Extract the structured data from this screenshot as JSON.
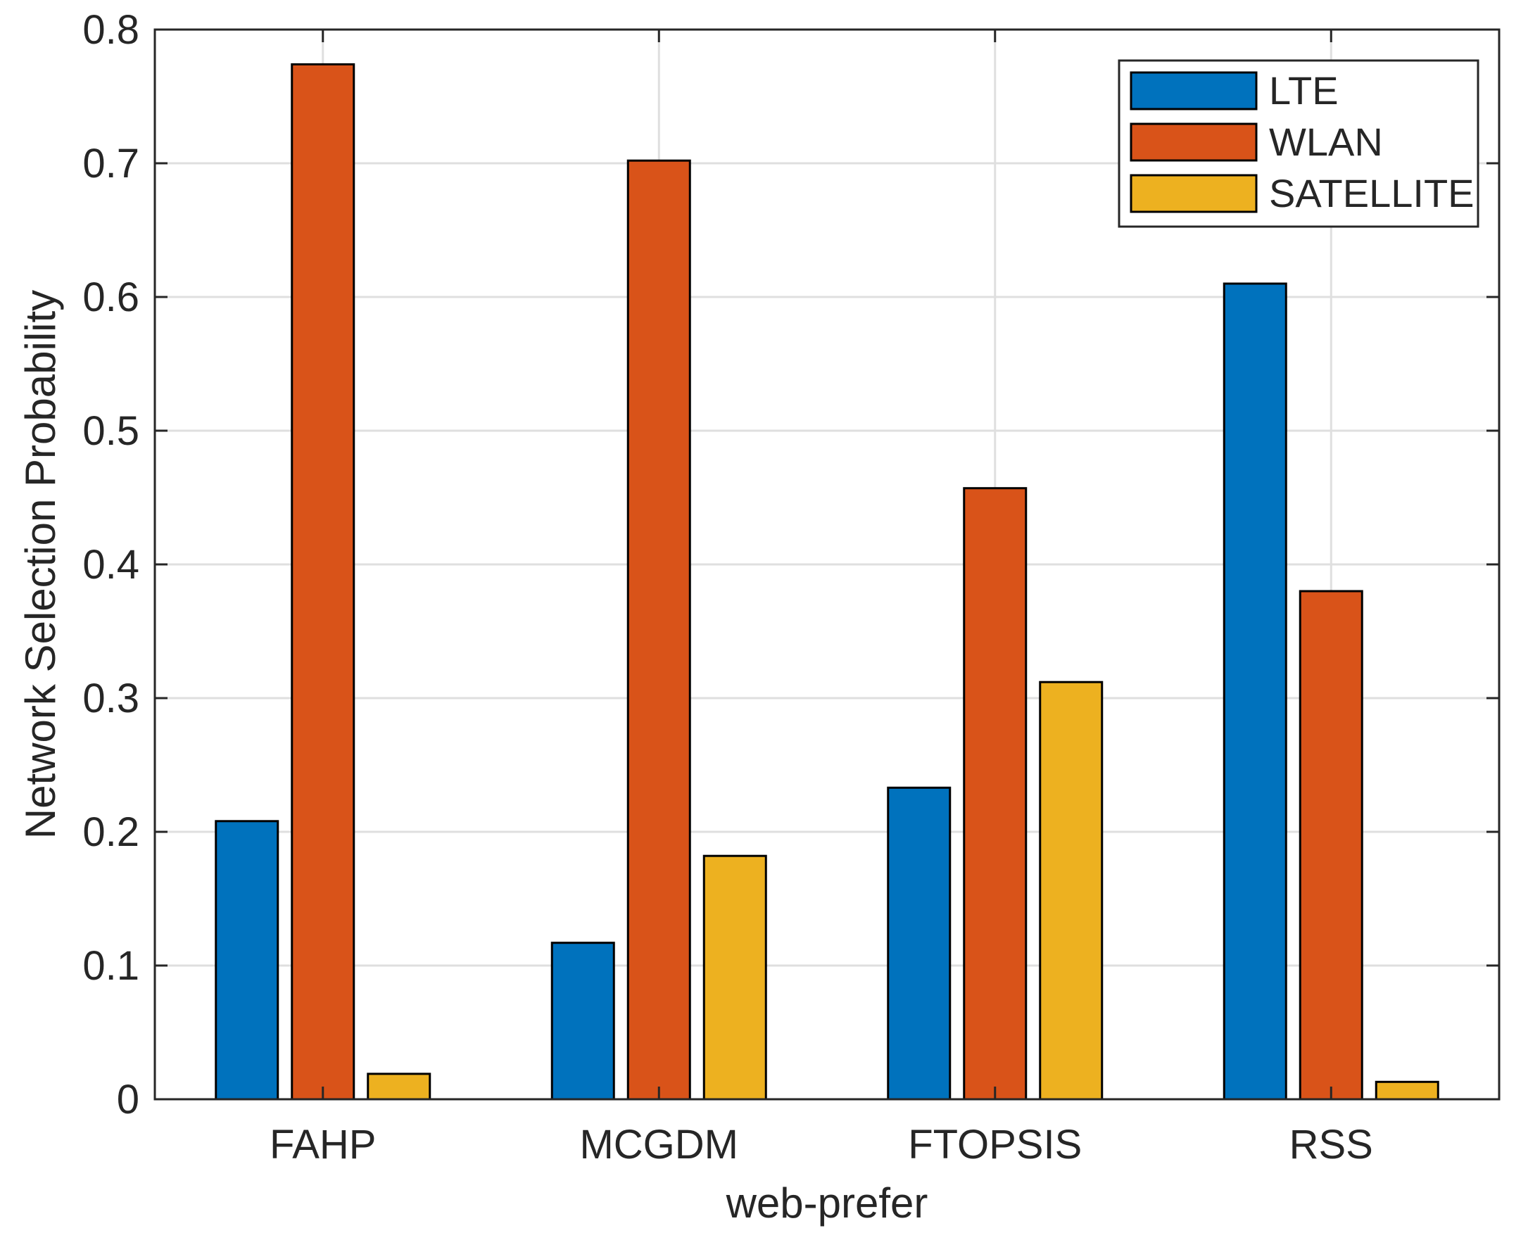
{
  "chart_data": {
    "type": "bar",
    "title": "",
    "xlabel": "web-prefer",
    "ylabel": "Network Selection Probability",
    "categories": [
      "FAHP",
      "MCGDM",
      "FTOPSIS",
      "RSS"
    ],
    "series": [
      {
        "name": "LTE",
        "color": "#0072BD",
        "values": [
          0.208,
          0.117,
          0.233,
          0.61
        ]
      },
      {
        "name": "WLAN",
        "color": "#D95319",
        "values": [
          0.774,
          0.702,
          0.457,
          0.38
        ]
      },
      {
        "name": "SATELLITE",
        "color": "#EDB120",
        "values": [
          0.019,
          0.182,
          0.312,
          0.013
        ]
      }
    ],
    "ylim": [
      0,
      0.8
    ],
    "yticks": [
      0,
      0.1,
      0.2,
      0.3,
      0.4,
      0.5,
      0.6,
      0.7,
      0.8
    ],
    "ytick_labels": [
      "0",
      "0.1",
      "0.2",
      "0.3",
      "0.4",
      "0.5",
      "0.6",
      "0.7",
      "0.8"
    ],
    "grid": true,
    "legend_position": "top-right"
  }
}
